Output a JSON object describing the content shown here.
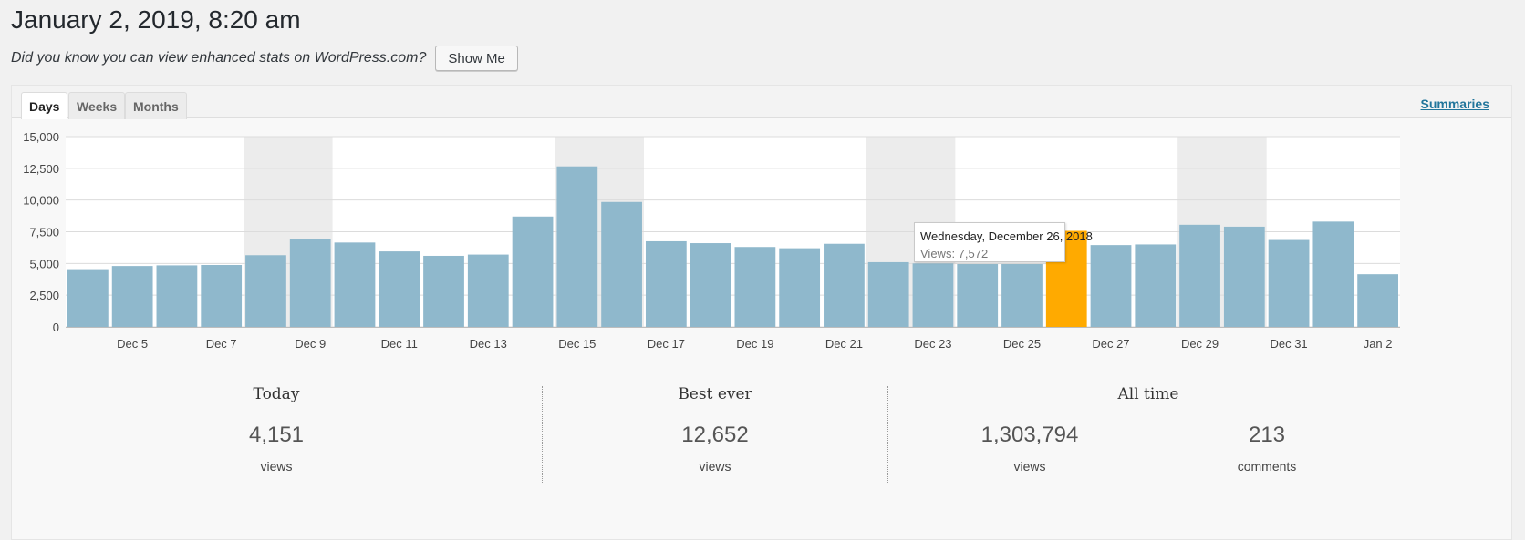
{
  "page_title": "January 2, 2019, 8:20 am",
  "promo": {
    "text": "Did you know you can view enhanced stats on WordPress.com?",
    "button_label": "Show Me"
  },
  "tabs": [
    {
      "label": "Days",
      "active": true
    },
    {
      "label": "Weeks",
      "active": false
    },
    {
      "label": "Months",
      "active": false
    }
  ],
  "summaries_link": "Summaries",
  "tooltip": {
    "title": "Wednesday, December 26, 2018",
    "value": "Views: 7,572"
  },
  "colors": {
    "bar": "#8fb8cc",
    "bar_highlight": "#ffaa00",
    "weekend_band": "#ececec",
    "grid": "#dcdcdc"
  },
  "chart_data": {
    "type": "bar",
    "ylabel": "",
    "xlabel": "",
    "ylim": [
      0,
      15000
    ],
    "y_ticks": [
      "0",
      "2,500",
      "5,000",
      "7,500",
      "10,000",
      "12,500",
      "15,000"
    ],
    "y_tick_values": [
      0,
      2500,
      5000,
      7500,
      10000,
      12500,
      15000
    ],
    "categories": [
      "Dec 4",
      "Dec 5",
      "Dec 6",
      "Dec 7",
      "Dec 8",
      "Dec 9",
      "Dec 10",
      "Dec 11",
      "Dec 12",
      "Dec 13",
      "Dec 14",
      "Dec 15",
      "Dec 16",
      "Dec 17",
      "Dec 18",
      "Dec 19",
      "Dec 20",
      "Dec 21",
      "Dec 22",
      "Dec 23",
      "Dec 24",
      "Dec 25",
      "Dec 26",
      "Dec 27",
      "Dec 28",
      "Dec 29",
      "Dec 30",
      "Dec 31",
      "Jan 1",
      "Jan 2"
    ],
    "x_tick_labels": [
      "Dec 5",
      "Dec 7",
      "Dec 9",
      "Dec 11",
      "Dec 13",
      "Dec 15",
      "Dec 17",
      "Dec 19",
      "Dec 21",
      "Dec 23",
      "Dec 25",
      "Dec 27",
      "Dec 29",
      "Dec 31",
      "Jan 2"
    ],
    "values": [
      4550,
      4800,
      4850,
      4880,
      5650,
      6900,
      6650,
      5950,
      5600,
      5700,
      8700,
      12652,
      9850,
      6750,
      6600,
      6300,
      6200,
      6550,
      5100,
      5000,
      4950,
      4950,
      7572,
      6450,
      6500,
      8050,
      7900,
      6850,
      8300,
      4151
    ],
    "highlighted_category": "Dec 26",
    "weekend_bands": [
      [
        "Dec 8",
        "Dec 9"
      ],
      [
        "Dec 15",
        "Dec 16"
      ],
      [
        "Dec 22",
        "Dec 23"
      ],
      [
        "Dec 29",
        "Dec 30"
      ]
    ]
  },
  "summary": {
    "today": {
      "heading": "Today",
      "views": "4,151",
      "views_label": "views"
    },
    "best_ever": {
      "heading": "Best ever",
      "views": "12,652",
      "views_label": "views"
    },
    "all_time": {
      "heading": "All time",
      "views": "1,303,794",
      "views_label": "views",
      "comments": "213",
      "comments_label": "comments"
    }
  }
}
